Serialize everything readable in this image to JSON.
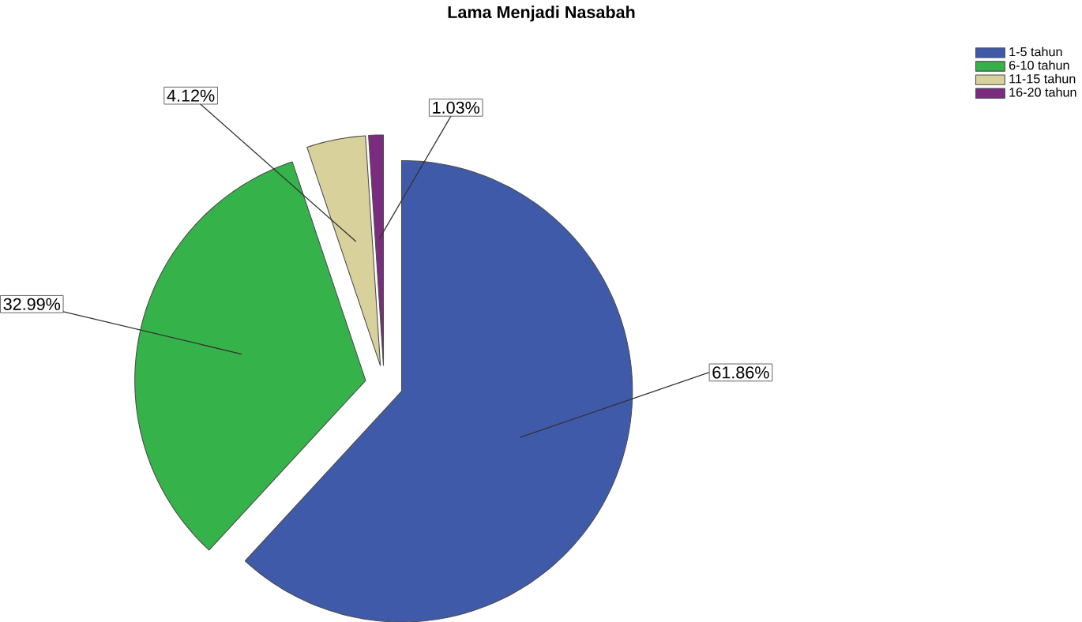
{
  "chart_data": {
    "type": "pie",
    "title": "Lama Menjadi Nasabah",
    "categories": [
      "1-5 tahun",
      "6-10 tahun",
      "11-15 tahun",
      "16-20 tahun"
    ],
    "values": [
      61.86,
      32.99,
      4.12,
      1.03
    ],
    "value_labels": [
      "61.86%",
      "32.99%",
      "4.12%",
      "1.03%"
    ],
    "colors": [
      "#3f5aa8",
      "#35b34a",
      "#d8d19c",
      "#7b2c80"
    ],
    "legend": "top right"
  }
}
